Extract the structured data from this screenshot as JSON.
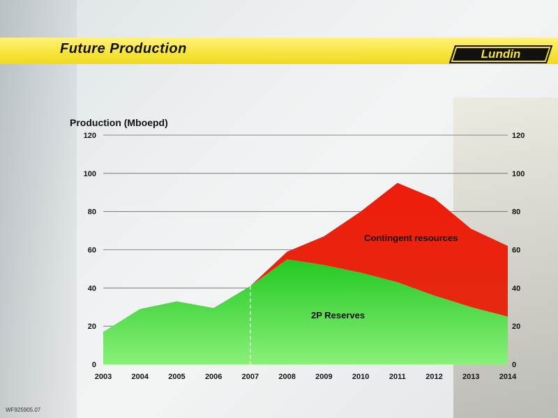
{
  "slide": {
    "title": "Future Production",
    "logo_text": "Lundin",
    "footer_code": "WF925905.07"
  },
  "colors": {
    "banner": "#f7e43a",
    "reserves_green": "#2fd42f",
    "contingent_red": "#ee1c0c",
    "gridline": "#666666"
  },
  "chart_data": {
    "type": "area",
    "ylabel": "Production (Mboepd)",
    "xlabel": "",
    "title": "",
    "x": [
      2003,
      2004,
      2005,
      2006,
      2007,
      2008,
      2009,
      2010,
      2011,
      2012,
      2013,
      2014
    ],
    "ylim": [
      0,
      120
    ],
    "yticks": [
      0,
      20,
      40,
      60,
      80,
      100,
      120
    ],
    "y_axis_both_sides": true,
    "grid": true,
    "divider_at": 2007,
    "series": [
      {
        "name": "2P Reserves",
        "color": "#2fd42f",
        "values": [
          17,
          29,
          33,
          29.5,
          41,
          55,
          52,
          48,
          43,
          36,
          30,
          25
        ]
      },
      {
        "name": "Contingent resources",
        "color": "#ee1c0c",
        "values": [
          0,
          0,
          0,
          0,
          0,
          4,
          15,
          32,
          52,
          51,
          41,
          37
        ]
      }
    ]
  }
}
